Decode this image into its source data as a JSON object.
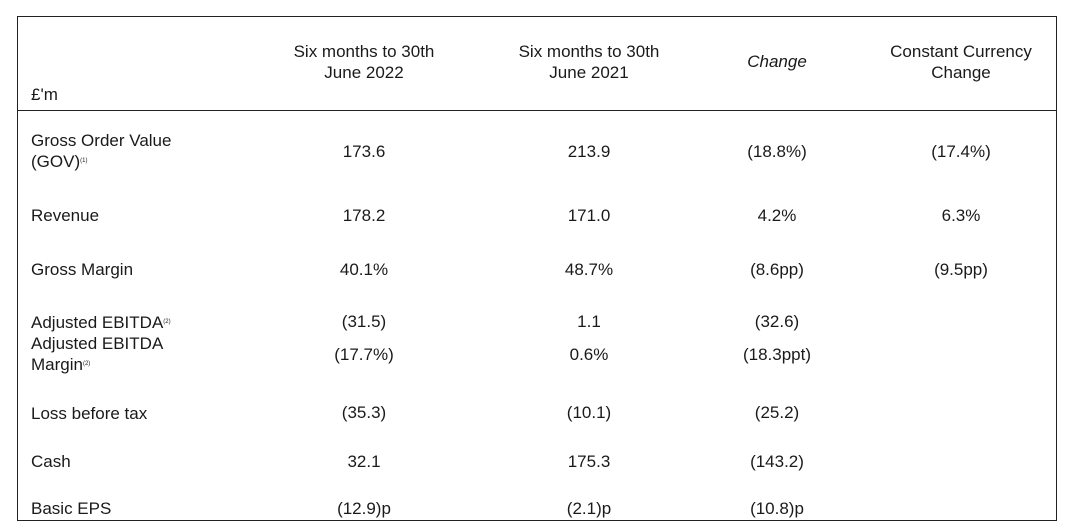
{
  "header": {
    "unit": "£'m",
    "col1_line1": "Six months to 30th",
    "col1_line2": "June 2022",
    "col2_line1": "Six months to 30th",
    "col2_line2": "June 2021",
    "col3": "Change",
    "col4_line1": "Constant Currency",
    "col4_line2": "Change"
  },
  "rows": {
    "gov": {
      "label_line1": "Gross Order Value",
      "label_line2": "(GOV)",
      "footnote": "(1)",
      "y2022": "173.6",
      "y2021": "213.9",
      "change": "(18.8%)",
      "cc_change": "(17.4%)"
    },
    "revenue": {
      "label": "Revenue",
      "y2022": "178.2",
      "y2021": "171.0",
      "change": "4.2%",
      "cc_change": "6.3%"
    },
    "gross_margin": {
      "label": "Gross Margin",
      "y2022": "40.1%",
      "y2021": "48.7%",
      "change": "(8.6pp)",
      "cc_change": "(9.5pp)"
    },
    "adj_ebitda": {
      "label": "Adjusted EBITDA",
      "footnote": "(2)",
      "y2022": "(31.5)",
      "y2021": "1.1",
      "change": "(32.6)"
    },
    "adj_ebitda_margin": {
      "label_line1": "Adjusted EBITDA",
      "label_line2": "Margin",
      "footnote": "(2)",
      "y2022": "(17.7%)",
      "y2021": "0.6%",
      "change": "(18.3ppt)"
    },
    "loss_before_tax": {
      "label": "Loss before tax",
      "y2022": "(35.3)",
      "y2021": "(10.1)",
      "change": "(25.2)"
    },
    "cash": {
      "label": "Cash",
      "y2022": "32.1",
      "y2021": "175.3",
      "change": "(143.2)"
    },
    "basic_eps": {
      "label": "Basic EPS",
      "y2022": "(12.9)p",
      "y2021": "(2.1)p",
      "change": "(10.8)p"
    }
  }
}
